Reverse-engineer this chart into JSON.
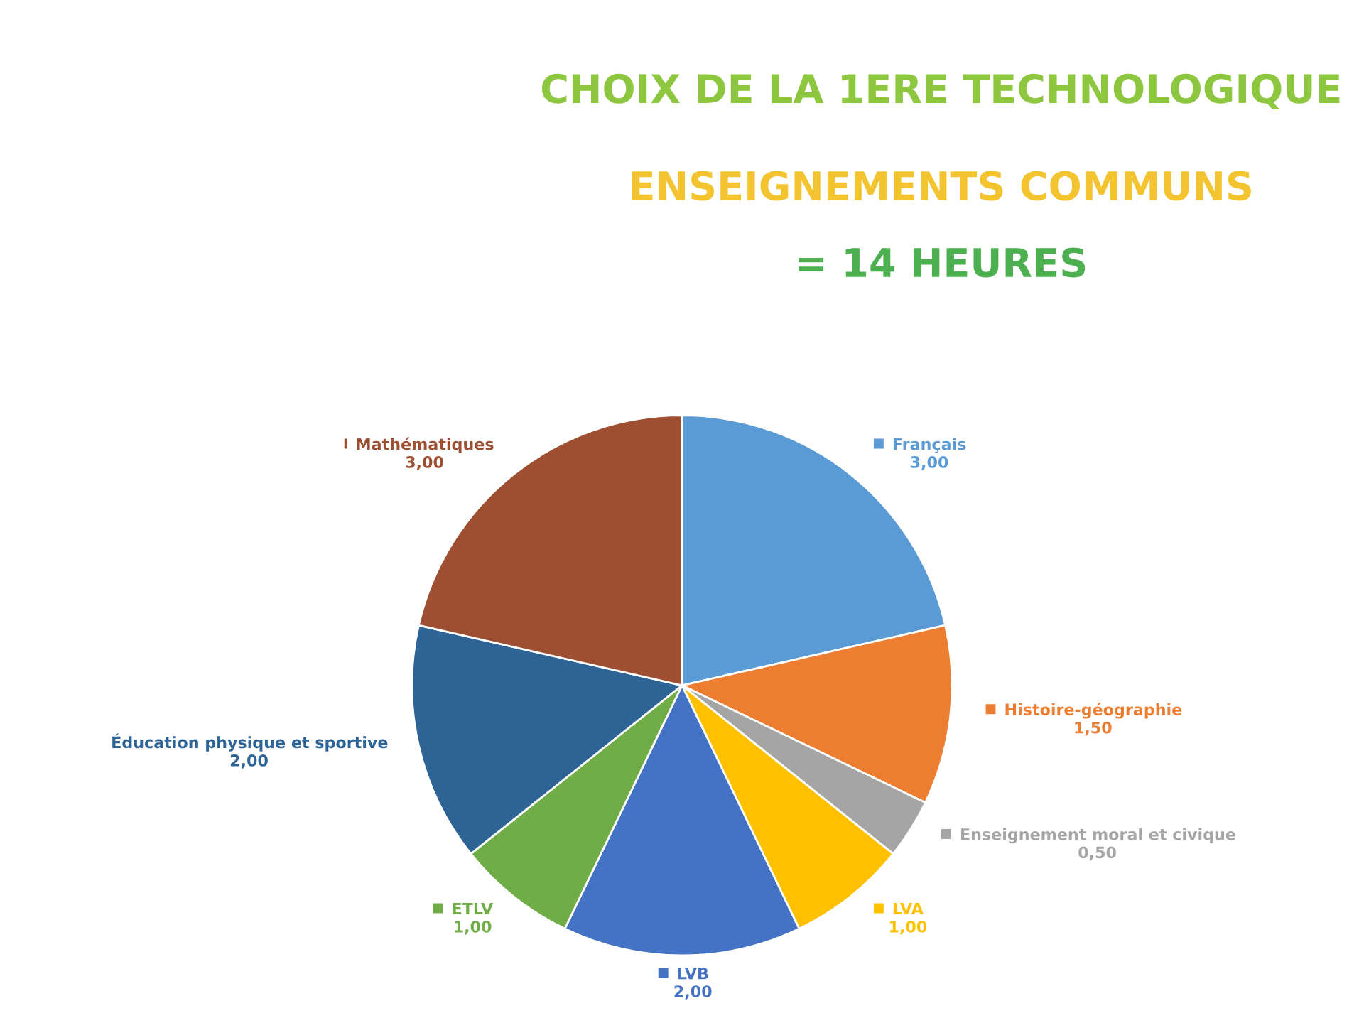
{
  "chart_data": {
    "type": "pie",
    "title": "CHOIX DE LA 1ERE TECHNOLOGIQUE",
    "subtitle": "ENSEIGNEMENTS COMMUNS",
    "annotations": [
      "= 14 HEURES"
    ],
    "categories": [
      "Français",
      "Histoire-géographie",
      "Enseignement moral et civique",
      "LVA",
      "LVB",
      "ETLV",
      "Éducation physique et sportive",
      "Mathématiques"
    ],
    "values": [
      3,
      1.5,
      0.5,
      1,
      2,
      1,
      2,
      3
    ],
    "value_labels": [
      "3,00",
      "1,50",
      "0,50",
      "1,00",
      "2,00",
      "1,00",
      "2,00",
      "3,00"
    ],
    "colors": [
      "#5b9bd5",
      "#ed7d31",
      "#a5a5a5",
      "#ffc000",
      "#4472c4",
      "#70ad47",
      "#2e6395",
      "#9e4f32"
    ],
    "legend": "right"
  }
}
